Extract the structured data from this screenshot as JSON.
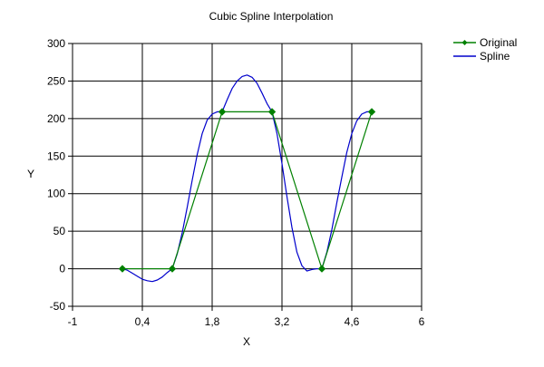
{
  "chart_data": {
    "type": "line",
    "title": "Cubic Spline Interpolation",
    "xlabel": "X",
    "ylabel": "Y",
    "xlim": [
      -1,
      6
    ],
    "ylim": [
      -50,
      300
    ],
    "x_ticks": [
      -1,
      0.4,
      1.8,
      3.2,
      4.6,
      6
    ],
    "x_tick_labels": [
      "-1",
      "0,4",
      "1,8",
      "3,2",
      "4,6",
      "6"
    ],
    "y_ticks": [
      -50,
      0,
      50,
      100,
      150,
      200,
      250,
      300
    ],
    "y_tick_labels": [
      "-50",
      "0",
      "50",
      "100",
      "150",
      "200",
      "250",
      "300"
    ],
    "grid": true,
    "legend_position": "top-right",
    "series": [
      {
        "name": "Original",
        "color": "#008000",
        "marker": "diamond",
        "x": [
          0,
          1,
          2,
          3,
          4,
          5
        ],
        "y": [
          0,
          0,
          209,
          209,
          0,
          209
        ]
      },
      {
        "name": "Spline",
        "color": "#0000cc",
        "marker": "none",
        "x": [
          0,
          0.1,
          0.2,
          0.3,
          0.4,
          0.5,
          0.6,
          0.7,
          0.8,
          0.9,
          1.0,
          1.1,
          1.2,
          1.3,
          1.4,
          1.5,
          1.6,
          1.7,
          1.8,
          1.9,
          2.0,
          2.1,
          2.2,
          2.3,
          2.4,
          2.5,
          2.6,
          2.7,
          2.8,
          2.9,
          3.0,
          3.1,
          3.2,
          3.3,
          3.4,
          3.5,
          3.6,
          3.7,
          3.8,
          3.9,
          4.0,
          4.1,
          4.2,
          4.3,
          4.4,
          4.5,
          4.6,
          4.7,
          4.8,
          4.9,
          5.0
        ],
        "y": [
          0,
          -2,
          -6,
          -10,
          -14,
          -16,
          -17,
          -15,
          -11,
          -5,
          0,
          20,
          48,
          82,
          118,
          152,
          180,
          198,
          206,
          209,
          209,
          225,
          240,
          250,
          256,
          258,
          255,
          247,
          234,
          220,
          209,
          180,
          140,
          96,
          55,
          22,
          4,
          -3,
          -1,
          0,
          0,
          22,
          52,
          88,
          122,
          155,
          180,
          197,
          206,
          209,
          209
        ]
      }
    ]
  }
}
